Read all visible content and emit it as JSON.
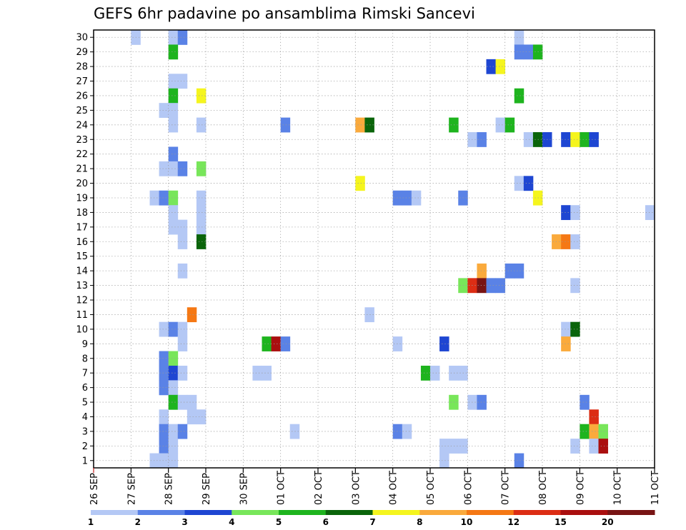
{
  "chart_data": {
    "type": "heatmap",
    "title": "GEFS 6hr padavine po ansamblima Rimski Sancevi",
    "xlabel": "",
    "ylabel": "",
    "x_ticks": [
      "26 SEP",
      "27 SEP",
      "28 SEP",
      "29 SEP",
      "30 SEP",
      "01 OCT",
      "02 OCT",
      "03 OCT",
      "04 OCT",
      "05 OCT",
      "06 OCT",
      "07 OCT",
      "08 OCT",
      "09 OCT",
      "10 OCT",
      "11 OCT"
    ],
    "xlim_days": [
      0,
      15
    ],
    "y_ticks": [
      1,
      2,
      3,
      4,
      5,
      6,
      7,
      8,
      9,
      10,
      11,
      12,
      13,
      14,
      15,
      16,
      17,
      18,
      19,
      20,
      21,
      22,
      23,
      24,
      25,
      26,
      27,
      28,
      29,
      30
    ],
    "ylim": [
      0.5,
      30.5
    ],
    "grid": true,
    "colorbar": {
      "labels": [
        "1",
        "2",
        "3",
        "4",
        "5",
        "6",
        "7",
        "8",
        "10",
        "12",
        "15",
        "20"
      ],
      "colors": [
        "#b4c8f5",
        "#5a82e6",
        "#1e46d2",
        "#78e65a",
        "#1eb41e",
        "#0a640a",
        "#f5f51e",
        "#faaa3c",
        "#f57814",
        "#dc2d14",
        "#aa0f0f",
        "#781414"
      ]
    },
    "cells": [
      [
        1.0,
        30,
        0
      ],
      [
        2.0,
        30,
        0
      ],
      [
        2.25,
        30,
        1
      ],
      [
        11.25,
        30,
        0
      ],
      [
        2.0,
        29,
        4
      ],
      [
        11.25,
        29,
        1
      ],
      [
        11.5,
        29,
        1
      ],
      [
        11.75,
        29,
        4
      ],
      [
        10.5,
        28,
        2
      ],
      [
        10.75,
        28,
        6
      ],
      [
        2.0,
        27,
        0
      ],
      [
        2.25,
        27,
        0
      ],
      [
        2.0,
        26,
        4
      ],
      [
        2.75,
        26,
        6
      ],
      [
        11.25,
        26,
        4
      ],
      [
        1.75,
        25,
        0
      ],
      [
        2.0,
        25,
        0
      ],
      [
        2.0,
        24,
        0
      ],
      [
        2.75,
        24,
        0
      ],
      [
        5.0,
        24,
        1
      ],
      [
        7.0,
        24,
        7
      ],
      [
        7.25,
        24,
        5
      ],
      [
        9.5,
        24,
        4
      ],
      [
        10.75,
        24,
        0
      ],
      [
        11.0,
        24,
        4
      ],
      [
        10.0,
        23,
        0
      ],
      [
        10.25,
        23,
        1
      ],
      [
        11.5,
        23,
        0
      ],
      [
        11.75,
        23,
        5
      ],
      [
        12.0,
        23,
        2
      ],
      [
        12.5,
        23,
        2
      ],
      [
        12.75,
        23,
        6
      ],
      [
        13.0,
        23,
        4
      ],
      [
        13.25,
        23,
        2
      ],
      [
        2.0,
        22,
        1
      ],
      [
        1.75,
        21,
        0
      ],
      [
        2.0,
        21,
        0
      ],
      [
        2.25,
        21,
        1
      ],
      [
        2.75,
        21,
        3
      ],
      [
        7.0,
        20,
        6
      ],
      [
        11.25,
        20,
        0
      ],
      [
        11.5,
        20,
        2
      ],
      [
        1.5,
        19,
        0
      ],
      [
        1.75,
        19,
        1
      ],
      [
        2.0,
        19,
        3
      ],
      [
        2.75,
        19,
        0
      ],
      [
        8.0,
        19,
        1
      ],
      [
        8.25,
        19,
        1
      ],
      [
        8.5,
        19,
        0
      ],
      [
        9.75,
        19,
        1
      ],
      [
        11.75,
        19,
        6
      ],
      [
        2.0,
        18,
        0
      ],
      [
        2.75,
        18,
        0
      ],
      [
        12.5,
        18,
        2
      ],
      [
        12.75,
        18,
        0
      ],
      [
        14.75,
        18,
        0
      ],
      [
        2.0,
        17,
        0
      ],
      [
        2.25,
        17,
        0
      ],
      [
        2.75,
        17,
        0
      ],
      [
        2.25,
        16,
        0
      ],
      [
        2.75,
        16,
        5
      ],
      [
        12.25,
        16,
        7
      ],
      [
        12.5,
        16,
        8
      ],
      [
        12.75,
        16,
        0
      ],
      [
        10.25,
        14,
        7
      ],
      [
        11.0,
        14,
        1
      ],
      [
        11.25,
        14,
        1
      ],
      [
        2.25,
        14,
        0
      ],
      [
        9.75,
        13,
        3
      ],
      [
        10.0,
        13,
        9
      ],
      [
        10.25,
        13,
        11
      ],
      [
        10.5,
        13,
        1
      ],
      [
        10.75,
        13,
        1
      ],
      [
        12.75,
        13,
        0
      ],
      [
        2.5,
        11,
        8
      ],
      [
        7.25,
        11,
        0
      ],
      [
        1.75,
        10,
        0
      ],
      [
        2.0,
        10,
        1
      ],
      [
        2.25,
        10,
        0
      ],
      [
        12.5,
        10,
        0
      ],
      [
        12.75,
        10,
        5
      ],
      [
        2.25,
        9,
        0
      ],
      [
        4.5,
        9,
        4
      ],
      [
        4.75,
        9,
        10
      ],
      [
        5.0,
        9,
        1
      ],
      [
        8.0,
        9,
        0
      ],
      [
        9.25,
        9,
        2
      ],
      [
        12.5,
        9,
        7
      ],
      [
        1.75,
        8,
        1
      ],
      [
        2.0,
        8,
        3
      ],
      [
        1.75,
        7,
        1
      ],
      [
        2.0,
        7,
        2
      ],
      [
        2.25,
        7,
        0
      ],
      [
        4.25,
        7,
        0
      ],
      [
        4.5,
        7,
        0
      ],
      [
        8.75,
        7,
        4
      ],
      [
        9.0,
        7,
        0
      ],
      [
        9.5,
        7,
        0
      ],
      [
        9.75,
        7,
        0
      ],
      [
        1.75,
        6,
        1
      ],
      [
        2.0,
        6,
        0
      ],
      [
        2.0,
        5,
        4
      ],
      [
        2.25,
        5,
        0
      ],
      [
        2.5,
        5,
        0
      ],
      [
        9.5,
        5,
        3
      ],
      [
        10.0,
        5,
        0
      ],
      [
        10.25,
        5,
        1
      ],
      [
        13.0,
        5,
        1
      ],
      [
        1.75,
        4,
        0
      ],
      [
        2.5,
        4,
        0
      ],
      [
        2.75,
        4,
        0
      ],
      [
        13.25,
        4,
        9
      ],
      [
        1.75,
        3,
        1
      ],
      [
        2.0,
        3,
        0
      ],
      [
        2.25,
        3,
        1
      ],
      [
        5.25,
        3,
        0
      ],
      [
        8.0,
        3,
        1
      ],
      [
        8.25,
        3,
        0
      ],
      [
        13.0,
        3,
        4
      ],
      [
        13.25,
        3,
        7
      ],
      [
        13.5,
        3,
        3
      ],
      [
        1.75,
        2,
        1
      ],
      [
        2.0,
        2,
        0
      ],
      [
        9.25,
        2,
        0
      ],
      [
        9.5,
        2,
        0
      ],
      [
        9.75,
        2,
        0
      ],
      [
        12.75,
        2,
        0
      ],
      [
        13.25,
        2,
        0
      ],
      [
        13.5,
        2,
        10
      ],
      [
        1.5,
        1,
        0
      ],
      [
        1.75,
        1,
        0
      ],
      [
        2.0,
        1,
        0
      ],
      [
        9.25,
        1,
        0
      ],
      [
        11.25,
        1,
        1
      ]
    ]
  }
}
